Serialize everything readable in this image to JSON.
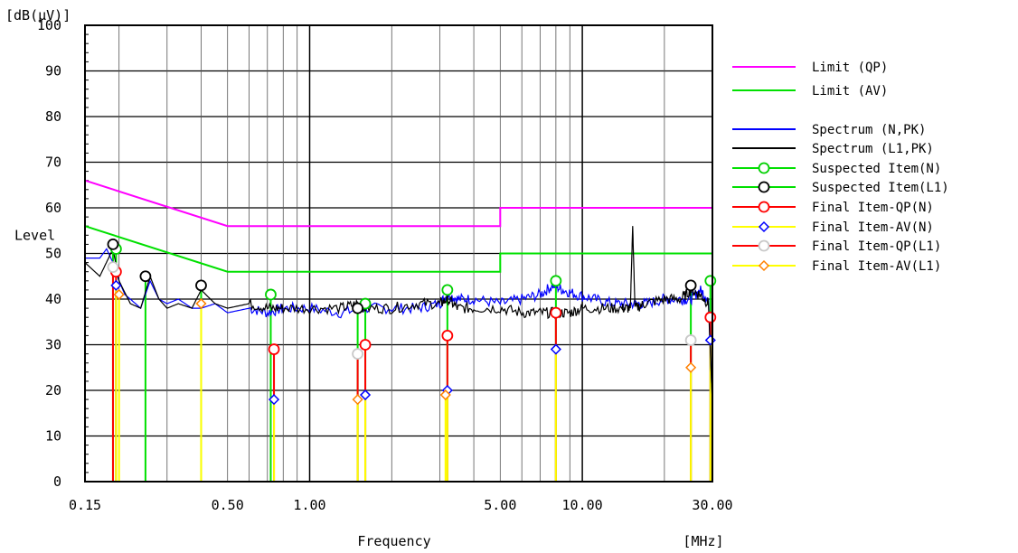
{
  "chart_data": {
    "type": "line",
    "x_scale": "log",
    "xlim": [
      0.15,
      30.0
    ],
    "ylim": [
      0,
      100
    ],
    "xlabel": "Frequency",
    "ylabel": "Level",
    "yunit": "[dB(µV)]",
    "xunit": "[MHz]",
    "grid": true,
    "legend_position": "right",
    "x_tick_labels": [
      {
        "v": 0.15,
        "t": "0.15"
      },
      {
        "v": 0.5,
        "t": "0.50"
      },
      {
        "v": 1.0,
        "t": "1.00"
      },
      {
        "v": 5.0,
        "t": "5.00"
      },
      {
        "v": 10.0,
        "t": "10.00"
      },
      {
        "v": 30.0,
        "t": "30.00"
      }
    ],
    "y_tick_labels": [
      "0",
      "10",
      "20",
      "30",
      "40",
      "50",
      "60",
      "70",
      "80",
      "90",
      "100"
    ],
    "limits": [
      {
        "name": "Limit (QP)",
        "color": "#ff00ff",
        "x": [
          0.15,
          0.5,
          5.0,
          5.0,
          30.0
        ],
        "y": [
          66,
          56,
          56,
          60,
          60
        ]
      },
      {
        "name": "Limit (AV)",
        "color": "#00e000",
        "x": [
          0.15,
          0.5,
          5.0,
          5.0,
          30.0
        ],
        "y": [
          56,
          46,
          46,
          50,
          50
        ]
      }
    ],
    "spectra": [
      {
        "name": "Spectrum (N,PK)",
        "color": "#0000ff",
        "x": [
          0.15,
          0.17,
          0.18,
          0.19,
          0.2,
          0.21,
          0.22,
          0.24,
          0.26,
          0.28,
          0.3,
          0.33,
          0.37,
          0.4,
          0.45,
          0.5,
          0.6,
          0.7,
          0.8,
          1.0,
          1.3,
          1.6,
          2.0,
          2.5,
          3.0,
          3.2,
          3.5,
          4.0,
          5.0,
          6.0,
          7.0,
          7.8,
          8.5,
          9.5,
          11.0,
          13.0,
          15.0,
          17.0,
          20.0,
          23.0,
          25.0,
          27.0,
          29.0,
          30.0
        ],
        "y": [
          49,
          49,
          51,
          48,
          44,
          41,
          40,
          38,
          44,
          40,
          39,
          40,
          38,
          38,
          39,
          37,
          38,
          37,
          38,
          38,
          37,
          38,
          38,
          38,
          39,
          41,
          40,
          40,
          39,
          40,
          41,
          43,
          42,
          41,
          40,
          39,
          39,
          39,
          40,
          40,
          40,
          42,
          40,
          17
        ]
      },
      {
        "name": "Spectrum (L1,PK)",
        "color": "#000000",
        "x": [
          0.15,
          0.17,
          0.19,
          0.2,
          0.22,
          0.24,
          0.26,
          0.28,
          0.3,
          0.33,
          0.37,
          0.4,
          0.45,
          0.5,
          0.6,
          0.7,
          0.8,
          1.0,
          1.3,
          1.5,
          1.6,
          2.0,
          2.5,
          3.0,
          3.2,
          3.5,
          4.0,
          5.0,
          6.0,
          7.0,
          8.0,
          9.0,
          10.0,
          12.0,
          14.0,
          15.0,
          15.3,
          15.6,
          17.0,
          20.0,
          23.0,
          25.0,
          27.0,
          29.0,
          30.0
        ],
        "y": [
          48,
          45,
          51,
          44,
          39,
          38,
          45,
          40,
          38,
          39,
          38,
          42,
          39,
          38,
          39,
          38,
          38,
          38,
          38,
          39,
          38,
          38,
          39,
          39,
          40,
          38,
          38,
          38,
          37,
          37,
          37,
          37,
          38,
          38,
          38,
          38,
          56,
          38,
          39,
          40,
          40,
          42,
          41,
          39,
          17
        ]
      }
    ],
    "markers": [
      {
        "name": "Suspected Item(N)",
        "color": "#00d000",
        "shape": "circle",
        "hollow": true,
        "x": [
          0.195,
          0.72,
          1.6,
          3.2,
          8.0,
          29.5
        ],
        "y": [
          51,
          41,
          39,
          42,
          44,
          44
        ]
      },
      {
        "name": "Suspected Item(L1)",
        "color": "#000000",
        "shape": "circle",
        "hollow": true,
        "x": [
          0.19,
          0.25,
          0.4,
          1.5,
          25.0
        ],
        "y": [
          52,
          45,
          43,
          38,
          43
        ]
      },
      {
        "name": "Final Item-QP(N)",
        "color": "#ff0000",
        "shape": "circle",
        "hollow": true,
        "x": [
          0.195,
          0.74,
          1.6,
          3.2,
          8.0,
          29.5
        ],
        "y": [
          46,
          29,
          30,
          32,
          37,
          36
        ]
      },
      {
        "name": "Final Item-AV(N)",
        "color": "#0000ff",
        "shape": "diamond",
        "hollow": true,
        "x": [
          0.195,
          0.74,
          1.6,
          3.2,
          8.0,
          29.5
        ],
        "y": [
          43,
          18,
          19,
          20,
          29,
          31
        ]
      },
      {
        "name": "Final Item-QP(L1)",
        "color": "#c8c8c8",
        "shape": "circle",
        "hollow": true,
        "x": [
          0.19,
          1.5,
          25.0
        ],
        "y": [
          47,
          28,
          31
        ]
      },
      {
        "name": "Final Item-AV(L1)",
        "color": "#ff8000",
        "shape": "diamond",
        "hollow": true,
        "x": [
          0.2,
          0.4,
          1.5,
          3.15,
          25.0
        ],
        "y": [
          41,
          39,
          18,
          19,
          25
        ]
      }
    ],
    "legend": [
      {
        "label": "Limit (QP)",
        "color": "#ff00ff",
        "marker": "none"
      },
      {
        "label": "Limit (AV)",
        "color": "#00e000",
        "marker": "none"
      },
      {
        "label": "Spectrum (N,PK)",
        "color": "#0000ff",
        "marker": "none"
      },
      {
        "label": "Spectrum (L1,PK)",
        "color": "#000000",
        "marker": "none"
      },
      {
        "label": "Suspected Item(N)",
        "color": "#00e000",
        "marker": "circle",
        "marker_color": "#00d000"
      },
      {
        "label": "Suspected Item(L1)",
        "color": "#00e000",
        "marker": "circle",
        "marker_color": "#000000"
      },
      {
        "label": "Final Item-QP(N)",
        "color": "#ff0000",
        "marker": "circle",
        "marker_color": "#ff0000"
      },
      {
        "label": "Final Item-AV(N)",
        "color": "#ffff00",
        "marker": "diamond",
        "marker_color": "#0000ff"
      },
      {
        "label": "Final Item-QP(L1)",
        "color": "#ff0000",
        "marker": "circle",
        "marker_color": "#c8c8c8"
      },
      {
        "label": "Final Item-AV(L1)",
        "color": "#ffff00",
        "marker": "diamond",
        "marker_color": "#ff8000"
      }
    ]
  }
}
